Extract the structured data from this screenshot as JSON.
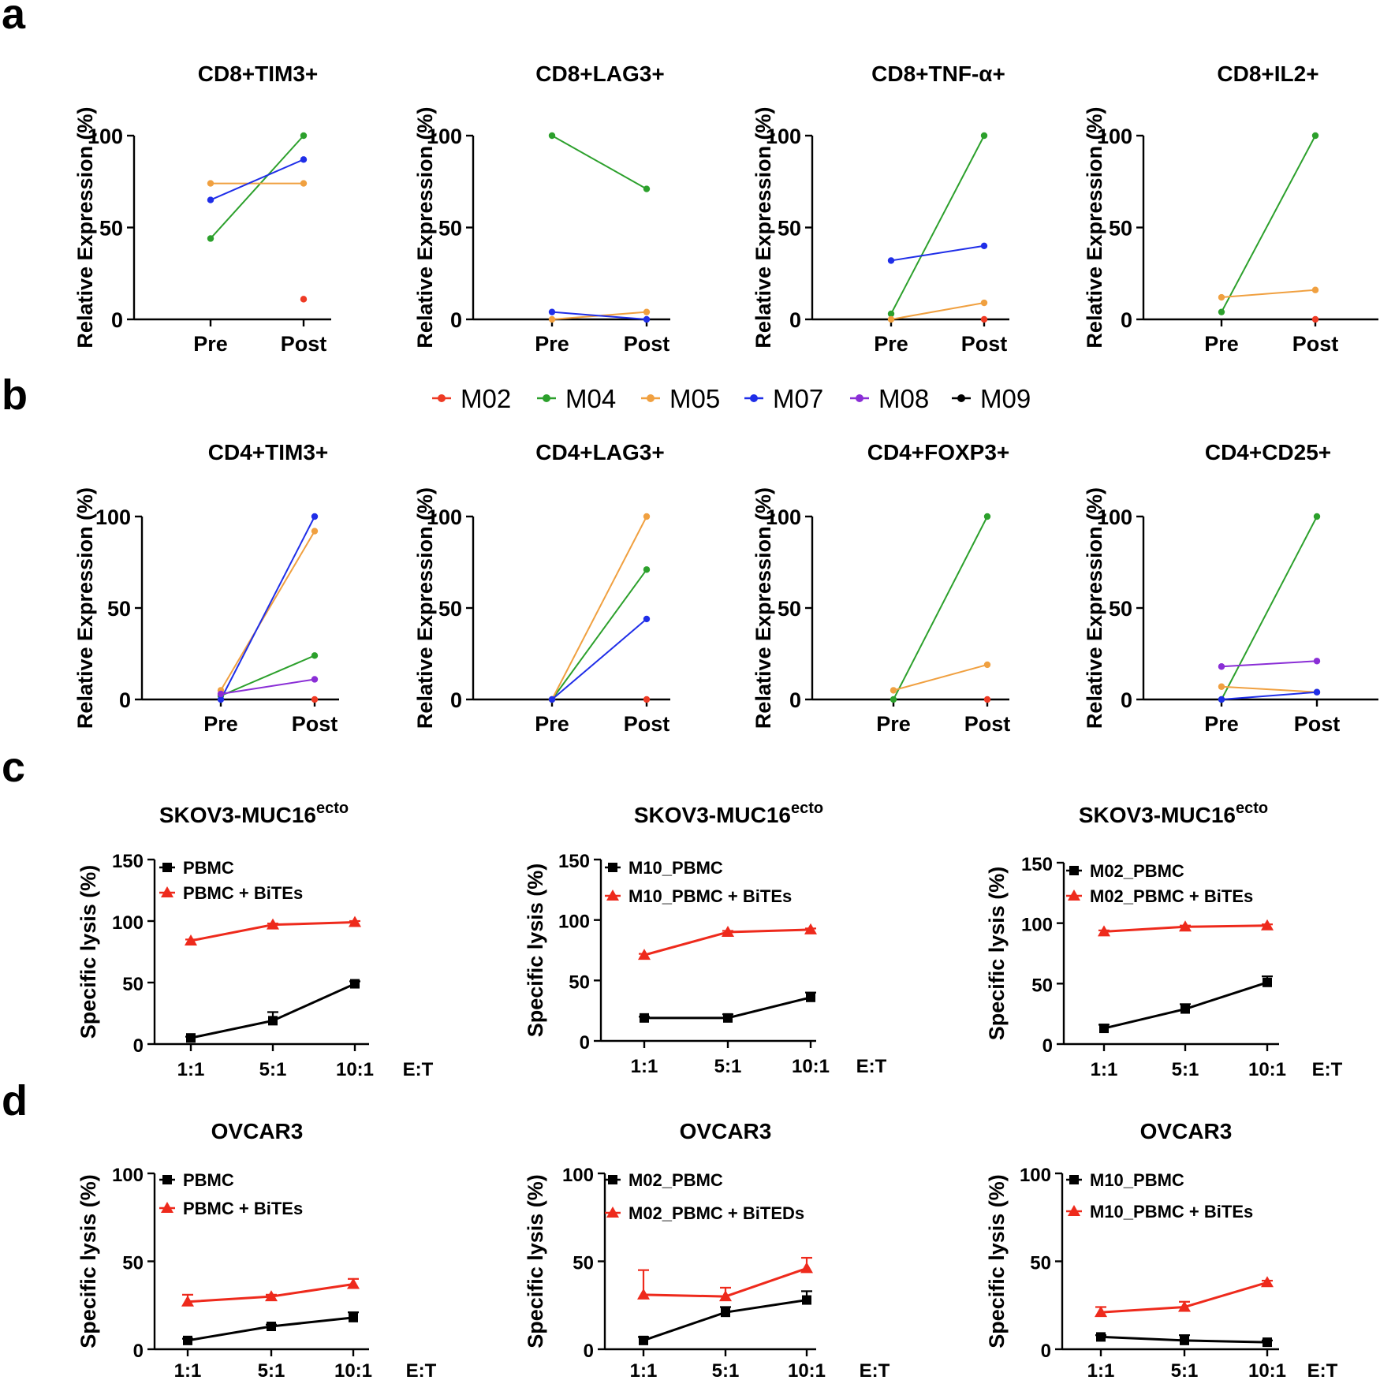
{
  "colors": {
    "M02": "#ee3a24",
    "M04": "#2ca02c",
    "M05": "#f0a040",
    "M07": "#1f2ee8",
    "M08": "#8a2ed6",
    "M09": "#000000",
    "pbmc": "#000000",
    "bites": "#ee2a1c"
  },
  "panels": {
    "a": "a",
    "b": "b",
    "c": "c",
    "d": "d"
  },
  "legend": {
    "items": [
      "M02",
      "M04",
      "M05",
      "M07",
      "M08",
      "M09"
    ]
  },
  "chart_data": [
    {
      "id": "a1",
      "type": "line",
      "title": "CD8+TIM3+",
      "ylabel": "Relative Expression (%)",
      "categories": [
        "Pre",
        "Post"
      ],
      "ylim": [
        0,
        100
      ],
      "yticks": [
        "0",
        "50",
        "100"
      ],
      "series": [
        {
          "name": "M02",
          "values": [
            null,
            11
          ]
        },
        {
          "name": "M04",
          "values": [
            44,
            100
          ]
        },
        {
          "name": "M05",
          "values": [
            74,
            74
          ]
        },
        {
          "name": "M07",
          "values": [
            65,
            87
          ]
        }
      ]
    },
    {
      "id": "a2",
      "type": "line",
      "title": "CD8+LAG3+",
      "ylabel": "Relative Expression (%)",
      "categories": [
        "Pre",
        "Post"
      ],
      "ylim": [
        0,
        100
      ],
      "yticks": [
        "0",
        "50",
        "100"
      ],
      "series": [
        {
          "name": "M04",
          "values": [
            100,
            71
          ]
        },
        {
          "name": "M05",
          "values": [
            0,
            4
          ]
        },
        {
          "name": "M07",
          "values": [
            4,
            0
          ]
        }
      ]
    },
    {
      "id": "a3",
      "type": "line",
      "title": "CD8+TNF-α+",
      "ylabel": "Relative Expression (%)",
      "categories": [
        "Pre",
        "Post"
      ],
      "ylim": [
        0,
        100
      ],
      "yticks": [
        "0",
        "50",
        "100"
      ],
      "series": [
        {
          "name": "M02",
          "values": [
            null,
            0
          ]
        },
        {
          "name": "M04",
          "values": [
            3,
            100
          ]
        },
        {
          "name": "M05",
          "values": [
            0,
            9
          ]
        },
        {
          "name": "M07",
          "values": [
            32,
            40
          ]
        }
      ]
    },
    {
      "id": "a4",
      "type": "line",
      "title": "CD8+IL2+",
      "ylabel": "Relative Expression (%)",
      "categories": [
        "Pre",
        "Post"
      ],
      "ylim": [
        0,
        100
      ],
      "yticks": [
        "0",
        "50",
        "100"
      ],
      "series": [
        {
          "name": "M02",
          "values": [
            null,
            0
          ]
        },
        {
          "name": "M04",
          "values": [
            4,
            100
          ]
        },
        {
          "name": "M05",
          "values": [
            12,
            16
          ]
        }
      ]
    },
    {
      "id": "b1",
      "type": "line",
      "title": "CD4+TIM3+",
      "ylabel": "Relative Expression (%)",
      "categories": [
        "Pre",
        "Post"
      ],
      "ylim": [
        0,
        100
      ],
      "yticks": [
        "0",
        "50",
        "100"
      ],
      "series": [
        {
          "name": "M02",
          "values": [
            null,
            0
          ]
        },
        {
          "name": "M04",
          "values": [
            2,
            24
          ]
        },
        {
          "name": "M05",
          "values": [
            5,
            92
          ]
        },
        {
          "name": "M07",
          "values": [
            0,
            100
          ]
        },
        {
          "name": "M08",
          "values": [
            3,
            11
          ]
        }
      ]
    },
    {
      "id": "b2",
      "type": "line",
      "title": "CD4+LAG3+",
      "ylabel": "Relative Expression (%)",
      "categories": [
        "Pre",
        "Post"
      ],
      "ylim": [
        0,
        100
      ],
      "yticks": [
        "0",
        "50",
        "100"
      ],
      "series": [
        {
          "name": "M02",
          "values": [
            null,
            0
          ]
        },
        {
          "name": "M04",
          "values": [
            0,
            71
          ]
        },
        {
          "name": "M05",
          "values": [
            0,
            100
          ]
        },
        {
          "name": "M07",
          "values": [
            0,
            44
          ]
        }
      ]
    },
    {
      "id": "b3",
      "type": "line",
      "title": "CD4+FOXP3+",
      "ylabel": "Relative Expression (%)",
      "categories": [
        "Pre",
        "Post"
      ],
      "ylim": [
        0,
        100
      ],
      "yticks": [
        "0",
        "50",
        "100"
      ],
      "series": [
        {
          "name": "M02",
          "values": [
            null,
            0
          ]
        },
        {
          "name": "M04",
          "values": [
            0,
            100
          ]
        },
        {
          "name": "M05",
          "values": [
            5,
            19
          ]
        }
      ]
    },
    {
      "id": "b4",
      "type": "line",
      "title": "CD4+CD25+",
      "ylabel": "Relative Expression (%)",
      "categories": [
        "Pre",
        "Post"
      ],
      "ylim": [
        0,
        100
      ],
      "yticks": [
        "0",
        "50",
        "100"
      ],
      "series": [
        {
          "name": "M04",
          "values": [
            0,
            100
          ]
        },
        {
          "name": "M05",
          "values": [
            7,
            4
          ]
        },
        {
          "name": "M07",
          "values": [
            0,
            4
          ]
        },
        {
          "name": "M08",
          "values": [
            18,
            21
          ]
        }
      ]
    },
    {
      "id": "c1",
      "type": "line",
      "title": "SKOV3-MUC16",
      "title_sup": "ecto",
      "ylabel": "Specific lysis (%)",
      "xlabel": "E:T",
      "categories": [
        "1:1",
        "5:1",
        "10:1"
      ],
      "ylim": [
        0,
        150
      ],
      "yticks": [
        "0",
        "50",
        "100",
        "150"
      ],
      "series": [
        {
          "name": "PBMC",
          "values": [
            5,
            19,
            49
          ],
          "errors": [
            1,
            7,
            2
          ]
        },
        {
          "name": "PBMC + BiTEs",
          "values": [
            84,
            97,
            99
          ],
          "errors": [
            1,
            1,
            1
          ]
        }
      ]
    },
    {
      "id": "c2",
      "type": "line",
      "title": "SKOV3-MUC16",
      "title_sup": "ecto",
      "ylabel": "Specific lysis (%)",
      "xlabel": "E:T",
      "categories": [
        "1:1",
        "5:1",
        "10:1"
      ],
      "ylim": [
        0,
        150
      ],
      "yticks": [
        "0",
        "50",
        "100",
        "150"
      ],
      "series": [
        {
          "name": "M10_PBMC",
          "values": [
            19,
            19,
            36
          ],
          "errors": [
            1,
            3,
            4
          ]
        },
        {
          "name": "M10_PBMC + BiTEs",
          "values": [
            71,
            90,
            92
          ],
          "errors": [
            1,
            1,
            1
          ]
        }
      ]
    },
    {
      "id": "c3",
      "type": "line",
      "title": "SKOV3-MUC16",
      "title_sup": "ecto",
      "ylabel": "Specific lysis (%)",
      "xlabel": "E:T",
      "categories": [
        "1:1",
        "5:1",
        "10:1"
      ],
      "ylim": [
        0,
        150
      ],
      "yticks": [
        "0",
        "50",
        "100",
        "150"
      ],
      "series": [
        {
          "name": "M02_PBMC",
          "values": [
            13,
            29,
            51
          ],
          "errors": [
            3,
            4,
            5
          ]
        },
        {
          "name": "M02_PBMC + BiTEs",
          "values": [
            93,
            97,
            98
          ],
          "errors": [
            1,
            1,
            1
          ]
        }
      ]
    },
    {
      "id": "d1",
      "type": "line",
      "title": "OVCAR3",
      "ylabel": "Specific lysis (%)",
      "xlabel": "E:T",
      "categories": [
        "1:1",
        "5:1",
        "10:1"
      ],
      "ylim": [
        0,
        100
      ],
      "yticks": [
        "0",
        "50",
        "100"
      ],
      "series": [
        {
          "name": "PBMC",
          "values": [
            5,
            13,
            18
          ],
          "errors": [
            1,
            1,
            3
          ]
        },
        {
          "name": "PBMC + BiTEs",
          "values": [
            27,
            30,
            37
          ],
          "errors": [
            4,
            1,
            3
          ]
        }
      ]
    },
    {
      "id": "d2",
      "type": "line",
      "title": "OVCAR3",
      "ylabel": "Specific lysis (%)",
      "xlabel": "E:T",
      "categories": [
        "1:1",
        "5:1",
        "10:1"
      ],
      "ylim": [
        0,
        100
      ],
      "yticks": [
        "0",
        "50",
        "100"
      ],
      "series": [
        {
          "name": "M02_PBMC",
          "values": [
            5,
            21,
            28
          ],
          "errors": [
            2,
            3,
            5
          ]
        },
        {
          "name": "M02_PBMC + BiTEDs",
          "values": [
            31,
            30,
            46
          ],
          "errors": [
            14,
            5,
            6
          ]
        }
      ]
    },
    {
      "id": "d3",
      "type": "line",
      "title": "OVCAR3",
      "ylabel": "Specific lysis (%)",
      "xlabel": "E:T",
      "categories": [
        "1:1",
        "5:1",
        "10:1"
      ],
      "ylim": [
        0,
        100
      ],
      "yticks": [
        "0",
        "50",
        "100"
      ],
      "series": [
        {
          "name": "M10_PBMC",
          "values": [
            7,
            5,
            4
          ],
          "errors": [
            1,
            3,
            1
          ]
        },
        {
          "name": "M10_PBMC + BiTEs",
          "values": [
            21,
            24,
            38
          ],
          "errors": [
            3,
            3,
            1
          ]
        }
      ]
    }
  ]
}
